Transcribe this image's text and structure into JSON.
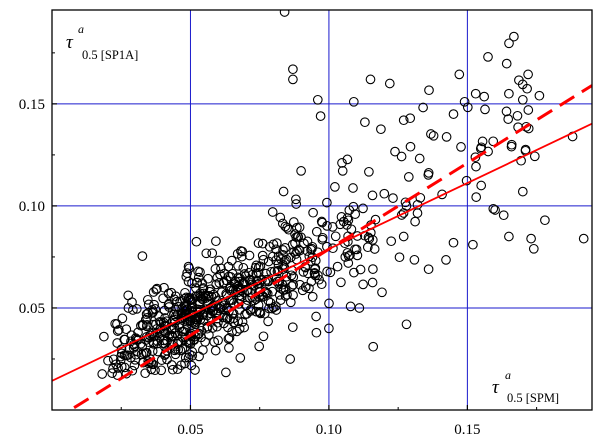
{
  "chart_data": {
    "type": "scatter",
    "title": "",
    "xlabel": {
      "symbol": "τ",
      "superscript": "a",
      "subscript": "0.5 [SPM]"
    },
    "ylabel": {
      "symbol": "τ",
      "superscript": "a",
      "subscript": "0.5 [SP1A]"
    },
    "xlim": [
      0.0,
      0.195
    ],
    "ylim": [
      0.0,
      0.196
    ],
    "x_ticks": [
      0.05,
      0.1,
      0.15
    ],
    "x_tick_labels": [
      "0.05",
      "0.10",
      "0.15"
    ],
    "y_ticks": [
      0.05,
      0.1,
      0.15
    ],
    "y_tick_labels": [
      "0.05",
      "0.10",
      "0.15"
    ],
    "grid": true,
    "colors": {
      "grid": "#1a1acd",
      "points": "#000000",
      "fit_lines": "#ff0000"
    },
    "lines": [
      {
        "style": "solid",
        "x": [
          0.0,
          0.195
        ],
        "y": [
          0.0143,
          0.1403
        ]
      },
      {
        "style": "dashed",
        "x": [
          0.0,
          0.195
        ],
        "y": [
          -0.0056,
          0.159
        ]
      }
    ],
    "points": [
      [
        0.084,
        0.195
      ],
      [
        0.087,
        0.167
      ],
      [
        0.087,
        0.162
      ],
      [
        0.096,
        0.152
      ],
      [
        0.115,
        0.162
      ],
      [
        0.122,
        0.16
      ],
      [
        0.109,
        0.151
      ],
      [
        0.149,
        0.151
      ],
      [
        0.153,
        0.155
      ],
      [
        0.165,
        0.155
      ],
      [
        0.17,
        0.152
      ],
      [
        0.176,
        0.154
      ],
      [
        0.172,
        0.147
      ],
      [
        0.145,
        0.145
      ],
      [
        0.113,
        0.141
      ],
      [
        0.127,
        0.142
      ],
      [
        0.097,
        0.144
      ],
      [
        0.166,
        0.13
      ],
      [
        0.171,
        0.127
      ],
      [
        0.188,
        0.134
      ],
      [
        0.145,
        0.082
      ],
      [
        0.152,
        0.081
      ],
      [
        0.155,
        0.11
      ],
      [
        0.192,
        0.084
      ],
      [
        0.12,
        0.106
      ],
      [
        0.128,
        0.1
      ],
      [
        0.133,
        0.104
      ],
      [
        0.17,
        0.107
      ],
      [
        0.173,
        0.084
      ],
      [
        0.174,
        0.079
      ],
      [
        0.178,
        0.093
      ],
      [
        0.165,
        0.085
      ],
      [
        0.16,
        0.098
      ],
      [
        0.127,
        0.085
      ],
      [
        0.136,
        0.069
      ],
      [
        0.116,
        0.031
      ],
      [
        0.1,
        0.04
      ],
      [
        0.086,
        0.025
      ],
      [
        0.111,
        0.05
      ],
      [
        0.128,
        0.042
      ]
    ]
  }
}
